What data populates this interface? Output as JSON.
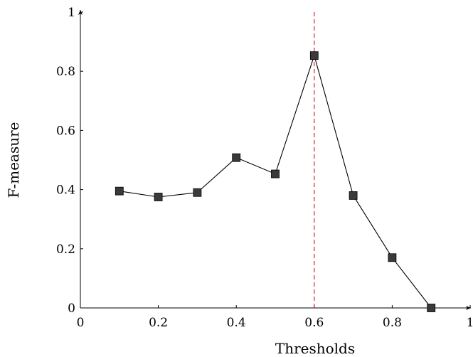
{
  "chart_data": {
    "type": "line",
    "title": "",
    "xlabel": "Thresholds",
    "ylabel": "F-measure",
    "xlim": [
      0,
      1
    ],
    "ylim": [
      0,
      1
    ],
    "grid": false,
    "legend": "none",
    "x_ticks": [
      "0",
      "0.2",
      "0.4",
      "0.6",
      "0.8",
      "1"
    ],
    "y_ticks": [
      "0",
      "0.2",
      "0.4",
      "0.6",
      "0.8",
      "1"
    ],
    "series": [
      {
        "x": [
          0.1,
          0.2,
          0.3,
          0.4,
          0.5,
          0.6,
          0.7,
          0.8,
          0.9
        ],
        "y": [
          0.395,
          0.375,
          0.39,
          0.508,
          0.453,
          0.853,
          0.38,
          0.17,
          0.0
        ],
        "marker": "square",
        "color": "#000000",
        "marker_color": "#3a3a3a"
      }
    ],
    "reference_lines": [
      {
        "orientation": "vertical",
        "x": 0.6,
        "color": "#d62728",
        "style": "dashed"
      }
    ]
  }
}
